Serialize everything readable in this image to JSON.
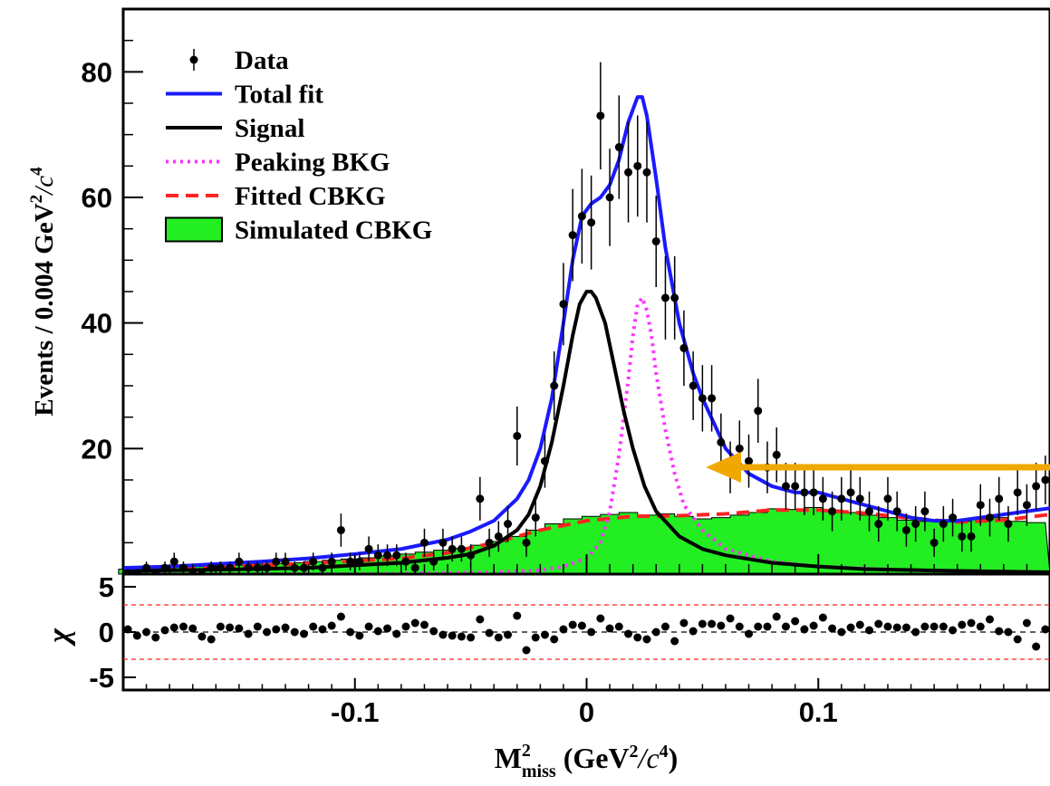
{
  "chart_data": [
    {
      "panel": "main",
      "type": "scatter",
      "xlabel_main": "M",
      "xlabel_sup": "2",
      "xlabel_sub": "miss",
      "xlabel_rest": " (GeV",
      "xlabel_sup2": "2",
      "xlabel_unit": "/c",
      "xlabel_sup3": "4",
      "xlabel_close": ")",
      "ylabel": "Events / 0.004 GeV",
      "ylabel_sup": "2",
      "ylabel_unit": "/c",
      "ylabel_sup2": "4",
      "xlim": [
        -0.2,
        0.2
      ],
      "ylim": [
        0,
        90
      ],
      "yticks": [
        "20",
        "40",
        "60",
        "80"
      ],
      "ytick_values": [
        20,
        40,
        60,
        80
      ],
      "xticks": [
        "-0.1",
        "0",
        "0.1"
      ],
      "xtick_values": [
        -0.1,
        0.0,
        0.1
      ],
      "legend_position": "top-left",
      "legend": [
        {
          "label": "Data",
          "style": "marker"
        },
        {
          "label": "Total fit",
          "style": "solid",
          "color": "#1a1aff"
        },
        {
          "label": "Signal",
          "style": "solid",
          "color": "#000000"
        },
        {
          "label": "Peaking BKG",
          "style": "dotted",
          "color": "#ff33ff"
        },
        {
          "label": "Fitted CBKG",
          "style": "dashed",
          "color": "#ff2222"
        },
        {
          "label": "Simulated CBKG",
          "style": "fill",
          "color": "#22ee22"
        }
      ],
      "series": [
        {
          "name": "Data",
          "x": [
            -0.198,
            -0.194,
            -0.19,
            -0.186,
            -0.182,
            -0.178,
            -0.174,
            -0.17,
            -0.166,
            -0.162,
            -0.158,
            -0.154,
            -0.15,
            -0.146,
            -0.142,
            -0.138,
            -0.134,
            -0.13,
            -0.126,
            -0.122,
            -0.118,
            -0.114,
            -0.11,
            -0.106,
            -0.102,
            -0.098,
            -0.094,
            -0.09,
            -0.086,
            -0.082,
            -0.078,
            -0.074,
            -0.07,
            -0.066,
            -0.062,
            -0.058,
            -0.054,
            -0.05,
            -0.046,
            -0.042,
            -0.038,
            -0.034,
            -0.03,
            -0.026,
            -0.022,
            -0.018,
            -0.014,
            -0.01,
            -0.006,
            -0.002,
            0.002,
            0.006,
            0.01,
            0.014,
            0.018,
            0.022,
            0.026,
            0.03,
            0.034,
            0.038,
            0.042,
            0.046,
            0.05,
            0.054,
            0.058,
            0.062,
            0.066,
            0.07,
            0.074,
            0.078,
            0.082,
            0.086,
            0.09,
            0.094,
            0.098,
            0.102,
            0.106,
            0.11,
            0.114,
            0.118,
            0.122,
            0.126,
            0.13,
            0.134,
            0.138,
            0.142,
            0.146,
            0.15,
            0.154,
            0.158,
            0.162,
            0.166,
            0.17,
            0.174,
            0.178,
            0.182,
            0.186,
            0.19,
            0.194,
            0.198
          ],
          "y": [
            0,
            0,
            1,
            0,
            1,
            2,
            1,
            0,
            0,
            1,
            1,
            1,
            2,
            1,
            1,
            1,
            2,
            2,
            1,
            1,
            2,
            1,
            2,
            7,
            2,
            2,
            4,
            3,
            3,
            3,
            2,
            1,
            5,
            2,
            5,
            4,
            4,
            3,
            12,
            5,
            6,
            8,
            22,
            5,
            9,
            18,
            30,
            43,
            54,
            57,
            56,
            73,
            60,
            68,
            64,
            65,
            64,
            53,
            44,
            44,
            36,
            30,
            28,
            28,
            21,
            17,
            20,
            18,
            26,
            17,
            19,
            14,
            14,
            13,
            13,
            12,
            10,
            12,
            13,
            12,
            10,
            8,
            12,
            10,
            7,
            8,
            10,
            5,
            8,
            9,
            6,
            6,
            11,
            9,
            12,
            8,
            13,
            11,
            14,
            15
          ]
        },
        {
          "name": "Total fit",
          "x": [
            -0.2,
            -0.18,
            -0.16,
            -0.14,
            -0.12,
            -0.1,
            -0.08,
            -0.06,
            -0.05,
            -0.04,
            -0.03,
            -0.025,
            -0.02,
            -0.015,
            -0.01,
            -0.006,
            -0.002,
            0.002,
            0.006,
            0.01,
            0.014,
            0.018,
            0.022,
            0.024,
            0.026,
            0.03,
            0.034,
            0.04,
            0.046,
            0.05,
            0.06,
            0.07,
            0.08,
            0.09,
            0.1,
            0.11,
            0.12,
            0.13,
            0.14,
            0.15,
            0.16,
            0.17,
            0.18,
            0.19,
            0.2
          ],
          "y": [
            1,
            1.2,
            1.6,
            2.0,
            2.5,
            3.2,
            4.0,
            5.5,
            6.8,
            8.5,
            12,
            15,
            20,
            28,
            40,
            50,
            57,
            59,
            60,
            62,
            66,
            72,
            76,
            76,
            73,
            63,
            52,
            40,
            32,
            28,
            20,
            16,
            14,
            13,
            13,
            12,
            11,
            10,
            9,
            8.5,
            8.5,
            9,
            9.5,
            10,
            10.5
          ]
        },
        {
          "name": "Signal",
          "x": [
            -0.2,
            -0.16,
            -0.12,
            -0.08,
            -0.06,
            -0.05,
            -0.04,
            -0.03,
            -0.025,
            -0.02,
            -0.015,
            -0.01,
            -0.006,
            -0.003,
            0.0,
            0.002,
            0.004,
            0.008,
            0.012,
            0.016,
            0.02,
            0.025,
            0.03,
            0.04,
            0.05,
            0.06,
            0.08,
            0.1,
            0.12,
            0.16,
            0.2
          ],
          "y": [
            0.5,
            0.7,
            1.0,
            1.8,
            2.6,
            3.2,
            4.5,
            7,
            9.5,
            14,
            21,
            30,
            38,
            43,
            45,
            45,
            44,
            40,
            33,
            26,
            20,
            14,
            10,
            6,
            4,
            3,
            1.8,
            1.2,
            0.8,
            0.5,
            0.3
          ]
        },
        {
          "name": "Peaking BKG",
          "x": [
            -0.2,
            -0.1,
            -0.04,
            -0.02,
            -0.01,
            0.0,
            0.006,
            0.01,
            0.014,
            0.018,
            0.02,
            0.022,
            0.024,
            0.026,
            0.028,
            0.03,
            0.034,
            0.038,
            0.042,
            0.05,
            0.06,
            0.08,
            0.1,
            0.14,
            0.2
          ],
          "y": [
            0,
            0,
            0.3,
            0.6,
            1.2,
            2.5,
            5,
            10,
            19,
            31,
            38,
            43,
            44,
            42,
            38,
            32,
            23,
            16,
            11,
            7,
            4,
            2,
            1.2,
            0.6,
            0.3
          ]
        },
        {
          "name": "Fitted CBKG",
          "x": [
            -0.2,
            -0.16,
            -0.12,
            -0.08,
            -0.06,
            -0.04,
            -0.02,
            0.0,
            0.02,
            0.04,
            0.06,
            0.08,
            0.1,
            0.12,
            0.14,
            0.16,
            0.18,
            0.2
          ],
          "y": [
            0.8,
            1.1,
            1.7,
            2.5,
            3.4,
            5,
            7,
            8.5,
            9.2,
            9.3,
            9.6,
            10.2,
            10.2,
            9.7,
            8.9,
            8.3,
            8.6,
            9.5
          ]
        },
        {
          "name": "Simulated CBKG",
          "x": [
            -0.198,
            -0.19,
            -0.182,
            -0.174,
            -0.166,
            -0.158,
            -0.15,
            -0.142,
            -0.134,
            -0.126,
            -0.118,
            -0.11,
            -0.102,
            -0.094,
            -0.086,
            -0.078,
            -0.07,
            -0.062,
            -0.054,
            -0.046,
            -0.038,
            -0.03,
            -0.022,
            -0.014,
            -0.006,
            0.002,
            0.01,
            0.018,
            0.026,
            0.034,
            0.042,
            0.05,
            0.058,
            0.066,
            0.074,
            0.082,
            0.09,
            0.098,
            0.106,
            0.114,
            0.122,
            0.13,
            0.138,
            0.146,
            0.154,
            0.162,
            0.17,
            0.178,
            0.186,
            0.194
          ],
          "y": [
            0.8,
            0.9,
            1.0,
            1.1,
            1.2,
            1.3,
            1.4,
            1.6,
            1.7,
            1.8,
            2.0,
            2.2,
            2.4,
            2.6,
            2.9,
            3.2,
            3.5,
            3.8,
            4.1,
            4.6,
            5.2,
            6.0,
            7.0,
            8.0,
            8.8,
            9.2,
            9.5,
            9.8,
            9.4,
            9.6,
            9.2,
            8.8,
            9.0,
            9.4,
            9.8,
            10.4,
            10.3,
            10.6,
            10.2,
            9.8,
            9.4,
            9.0,
            8.6,
            8.4,
            8.6,
            8.4,
            8.8,
            9.0,
            8.4,
            8.2
          ]
        }
      ],
      "arrow_color": "#f0a800"
    },
    {
      "panel": "residual",
      "type": "scatter",
      "ylabel": "χ",
      "ylim": [
        -5,
        5
      ],
      "yticks": [
        "5",
        "0",
        "-5"
      ],
      "ytick_values": [
        5,
        0,
        -5
      ],
      "reference_lines": [
        3,
        -3
      ],
      "series": [
        {
          "name": "χ",
          "x": [
            -0.198,
            -0.194,
            -0.19,
            -0.186,
            -0.182,
            -0.178,
            -0.174,
            -0.17,
            -0.166,
            -0.162,
            -0.158,
            -0.154,
            -0.15,
            -0.146,
            -0.142,
            -0.138,
            -0.134,
            -0.13,
            -0.126,
            -0.122,
            -0.118,
            -0.114,
            -0.11,
            -0.106,
            -0.102,
            -0.098,
            -0.094,
            -0.09,
            -0.086,
            -0.082,
            -0.078,
            -0.074,
            -0.07,
            -0.066,
            -0.062,
            -0.058,
            -0.054,
            -0.05,
            -0.046,
            -0.042,
            -0.038,
            -0.034,
            -0.03,
            -0.026,
            -0.022,
            -0.018,
            -0.014,
            -0.01,
            -0.006,
            -0.002,
            0.002,
            0.006,
            0.01,
            0.014,
            0.018,
            0.022,
            0.026,
            0.03,
            0.034,
            0.038,
            0.042,
            0.046,
            0.05,
            0.054,
            0.058,
            0.062,
            0.066,
            0.07,
            0.074,
            0.078,
            0.082,
            0.086,
            0.09,
            0.094,
            0.098,
            0.102,
            0.106,
            0.11,
            0.114,
            0.118,
            0.122,
            0.126,
            0.13,
            0.134,
            0.138,
            0.142,
            0.146,
            0.15,
            0.154,
            0.158,
            0.162,
            0.166,
            0.17,
            0.174,
            0.178,
            0.182,
            0.186,
            0.19,
            0.194,
            0.198
          ],
          "y": [
            0.3,
            -0.4,
            0.0,
            -0.6,
            0.2,
            0.5,
            0.6,
            0.4,
            -0.5,
            -0.8,
            0.6,
            0.5,
            0.4,
            -0.2,
            0.6,
            0.0,
            0.3,
            0.5,
            0.0,
            -0.2,
            0.6,
            0.3,
            0.7,
            1.7,
            0.0,
            -0.4,
            0.6,
            0.1,
            0.4,
            -0.2,
            0.6,
            1.0,
            0.8,
            0.1,
            -0.3,
            -0.4,
            -0.5,
            -0.6,
            1.4,
            -0.1,
            -0.6,
            -0.3,
            1.8,
            -2.0,
            -0.6,
            -0.3,
            -0.8,
            0.3,
            0.8,
            0.7,
            0.0,
            1.5,
            0.4,
            0.6,
            -0.2,
            -0.6,
            -0.8,
            0.0,
            0.6,
            -1.0,
            1.0,
            0.1,
            0.9,
            0.9,
            0.7,
            1.5,
            0.6,
            -0.2,
            0.6,
            0.6,
            1.7,
            0.6,
            1.2,
            0.3,
            0.7,
            1.6,
            0.4,
            0.0,
            0.5,
            0.8,
            0.2,
            0.9,
            0.6,
            0.5,
            0.5,
            0.0,
            0.6,
            0.6,
            0.6,
            0.2,
            0.8,
            1.0,
            0.6,
            1.4,
            0.1,
            0.0,
            -0.8,
            1.0,
            -1.6,
            0.3
          ]
        }
      ]
    }
  ]
}
